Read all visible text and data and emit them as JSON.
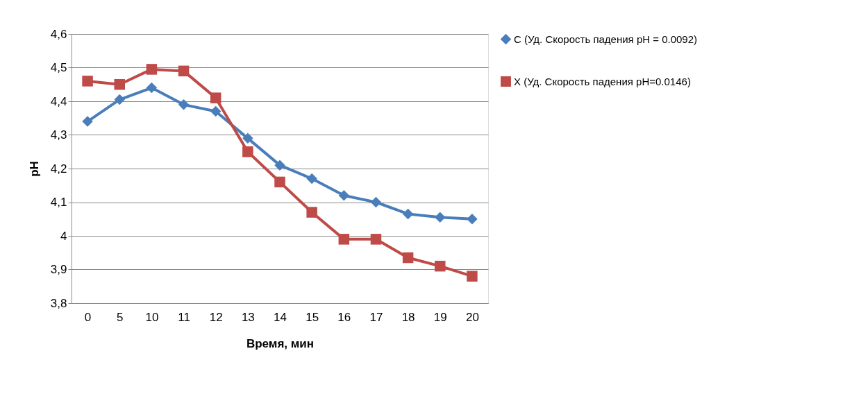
{
  "chart_data": {
    "type": "line",
    "xlabel": "Время, мин",
    "ylabel": "pH",
    "categories": [
      "0",
      "5",
      "10",
      "11",
      "12",
      "13",
      "14",
      "15",
      "16",
      "17",
      "18",
      "19",
      "20"
    ],
    "series": [
      {
        "name": "C (Уд. Скорость падения pH = 0.0092)",
        "color": "#4a7ebb",
        "marker": "diamond",
        "values": [
          4.34,
          4.405,
          4.44,
          4.39,
          4.37,
          4.29,
          4.21,
          4.17,
          4.12,
          4.1,
          4.065,
          4.055,
          4.05
        ]
      },
      {
        "name": "X (Уд. Скорость падения pH=0.0146)",
        "color": "#be4b48",
        "marker": "square",
        "values": [
          4.46,
          4.45,
          4.495,
          4.49,
          4.41,
          4.25,
          4.16,
          4.07,
          3.99,
          3.99,
          3.935,
          3.91,
          3.88
        ]
      }
    ],
    "ylim": [
      3.8,
      4.6
    ],
    "yticks": [
      {
        "value": 3.8,
        "label": "3,8"
      },
      {
        "value": 3.9,
        "label": "3,9"
      },
      4,
      {
        "value": 4.1,
        "label": "4,1"
      },
      {
        "value": 4.2,
        "label": "4,2"
      },
      {
        "value": 4.3,
        "label": "4,3"
      },
      {
        "value": 4.4,
        "label": "4,4"
      },
      {
        "value": 4.5,
        "label": "4,5"
      },
      {
        "value": 4.6,
        "label": "4,6"
      }
    ],
    "grid": "y",
    "legend": "right",
    "line_style": "solid"
  }
}
